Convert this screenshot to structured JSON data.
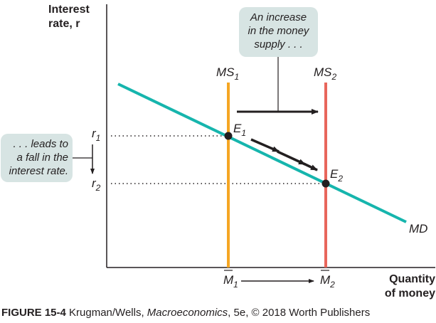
{
  "axes": {
    "y_label_line1": "Interest",
    "y_label_line2": "rate, r",
    "x_label_line1": "Quantity",
    "x_label_line2": "of money"
  },
  "curves": {
    "ms1": {
      "main": "MS",
      "sub": "1"
    },
    "ms2": {
      "main": "MS",
      "sub": "2"
    },
    "md": "MD"
  },
  "points": {
    "e1": {
      "main": "E",
      "sub": "1"
    },
    "e2": {
      "main": "E",
      "sub": "2"
    }
  },
  "ticks": {
    "r1": {
      "main": "r",
      "sub": "1"
    },
    "r2": {
      "main": "r",
      "sub": "2"
    },
    "m1": {
      "main": "M",
      "sub": "1"
    },
    "m2": {
      "main": "M",
      "sub": "2"
    }
  },
  "annotations": {
    "supply_box": [
      "An increase",
      "in the money",
      "supply . . ."
    ],
    "rate_box": [
      ". . . leads to",
      "a fall in the",
      "interest rate."
    ]
  },
  "caption": {
    "figure": "FIGURE 15-4",
    "text_before": " Krugman/Wells, ",
    "book": "Macroeconomics",
    "text_after": ", 5e, © 2018 Worth Publishers"
  },
  "colors": {
    "ms1": "#f5a623",
    "ms2": "#e8665c",
    "md": "#16b5ad",
    "box": "#d7e4e3"
  }
}
